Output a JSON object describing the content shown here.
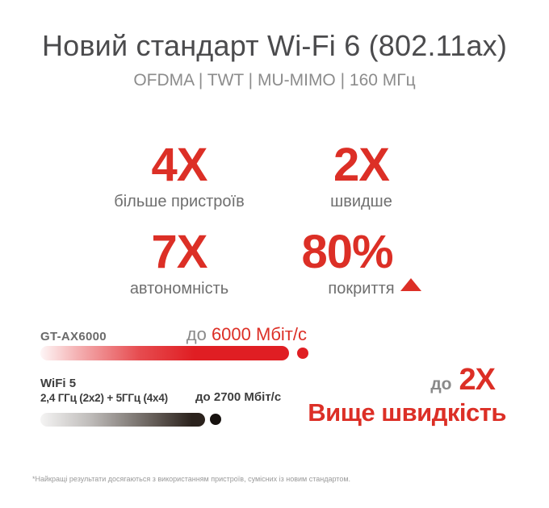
{
  "header": {
    "title": "Новий стандарт Wi-Fi 6 (802.11ax)",
    "subtitle": "OFDMA | TWT | MU-MIMO | 160 МГц"
  },
  "stats": [
    {
      "value": "4X",
      "label": "більше пристроїв"
    },
    {
      "value": "2X",
      "label": "швидше"
    },
    {
      "value": "7X",
      "label": "автономність"
    },
    {
      "value": "80%",
      "label": "покриття",
      "arrow": "up"
    }
  ],
  "comparison": {
    "wifi6": {
      "name": "GT-AX6000",
      "speed_prefix": "до",
      "speed": "6000 Мбіт/с"
    },
    "wifi5": {
      "name": "WiFi 5",
      "spec": "2,4 ГГц (2x2) + 5ГГц (4x4)",
      "speed_label": "до 2700 Мбіт/с"
    },
    "callout": {
      "prefix": "до",
      "multiplier": "2X",
      "caption": "Вище швидкість"
    }
  },
  "footnote": "*Найкращі результати досягаються з використанням пристроїв, сумісних із новим стандартом.",
  "colors": {
    "accent_red": "#dc2f26",
    "bar_red": "#e01e23",
    "bar_black": "#2b221d",
    "title_gray": "#4b4b4d",
    "label_gray": "#6f6f6f"
  },
  "chart_data": {
    "type": "bar",
    "orientation": "horizontal",
    "title": "Новий стандарт Wi-Fi 6 (802.11ax)",
    "subtitle": "OFDMA | TWT | MU-MIMO | 160 МГц",
    "categories": [
      "GT-AX6000",
      "WiFi 5 — 2,4 ГГц (2x2) + 5ГГц (4x4)"
    ],
    "values": [
      6000,
      2700
    ],
    "unit": "Мбіт/с",
    "xlim": [
      0,
      6000
    ],
    "series_colors": [
      "#e01e23",
      "#2b221d"
    ],
    "annotations": [
      "до 6000 Мбіт/с",
      "до 2700 Мбіт/с",
      "до 2X Вище швидкість"
    ],
    "highlights": [
      {
        "value": "4X",
        "label": "більше пристроїв"
      },
      {
        "value": "2X",
        "label": "швидше"
      },
      {
        "value": "7X",
        "label": "автономність"
      },
      {
        "value": "80%↑",
        "label": "покриття"
      }
    ]
  }
}
